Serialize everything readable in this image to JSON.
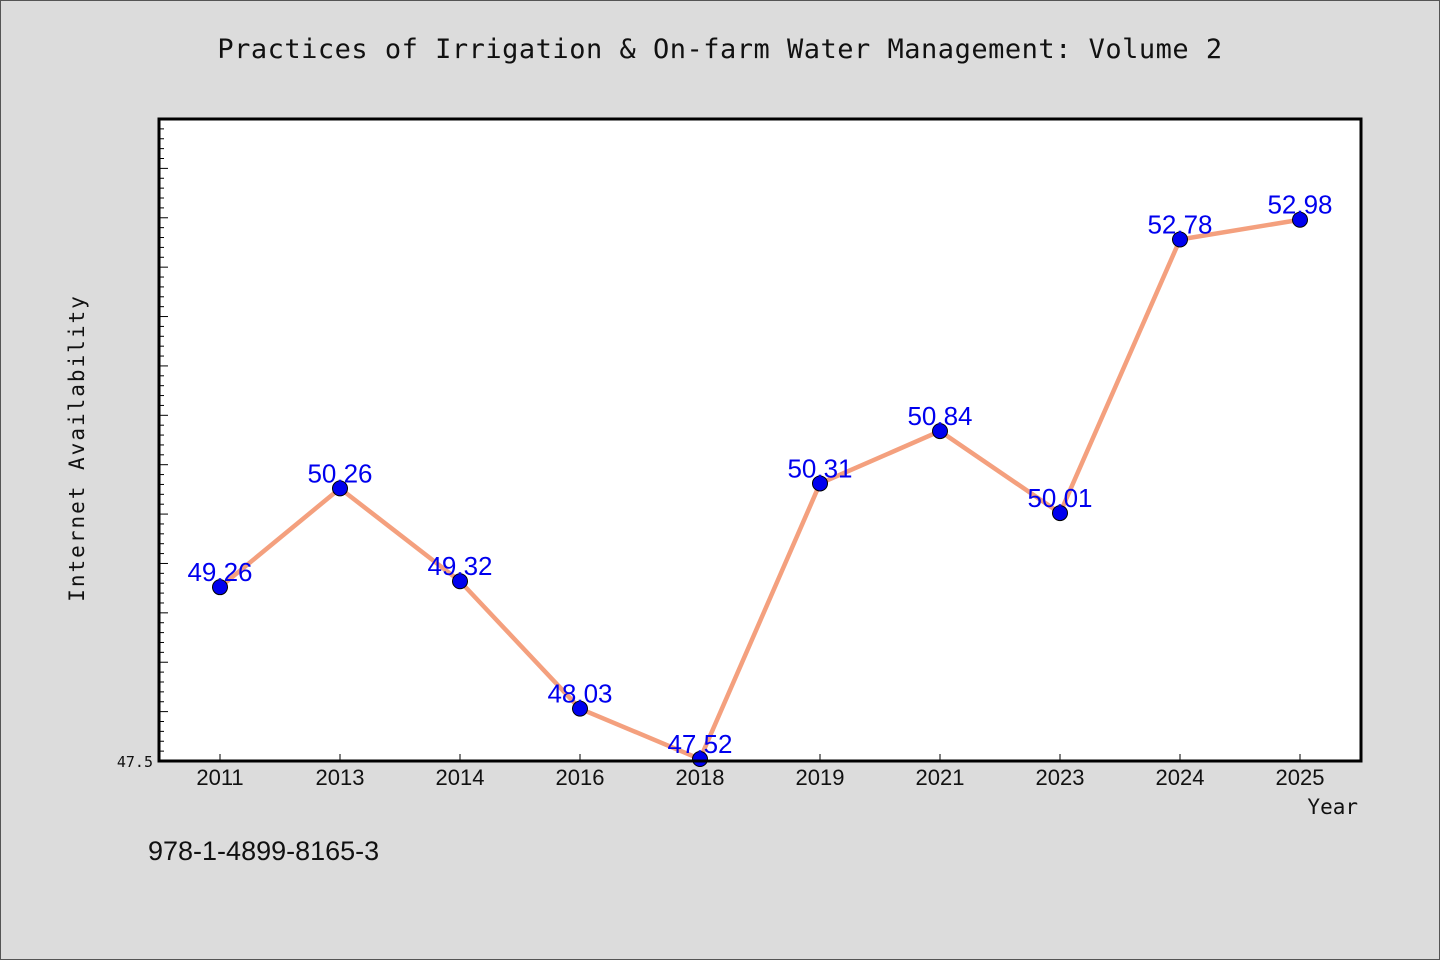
{
  "title": "Practices of Irrigation & On-farm Water Management: Volume 2",
  "footnote": "978-1-4899-8165-3",
  "chart_data": {
    "type": "line",
    "title": "Practices of Irrigation & On-farm Water Management: Volume 2",
    "xlabel": "Year",
    "ylabel": "Internet Availability",
    "categories": [
      "2011",
      "2013",
      "2014",
      "2016",
      "2018",
      "2019",
      "2021",
      "2023",
      "2024",
      "2025"
    ],
    "series": [
      {
        "values": [
          49.26,
          50.26,
          49.32,
          48.03,
          47.52,
          50.31,
          50.84,
          50.01,
          52.78,
          52.98
        ],
        "labels": [
          "49.26",
          "50.26",
          "49.32",
          "48.03",
          "47.52",
          "50.31",
          "50.84",
          "50.01",
          "52.78",
          "52.98"
        ],
        "line_color": "#f4a07e",
        "marker_color": "#0000ee"
      }
    ],
    "ylim": [
      47.5,
      54.0
    ],
    "ytick_labels": [
      "47.5"
    ],
    "grid": false,
    "legend": "none"
  }
}
